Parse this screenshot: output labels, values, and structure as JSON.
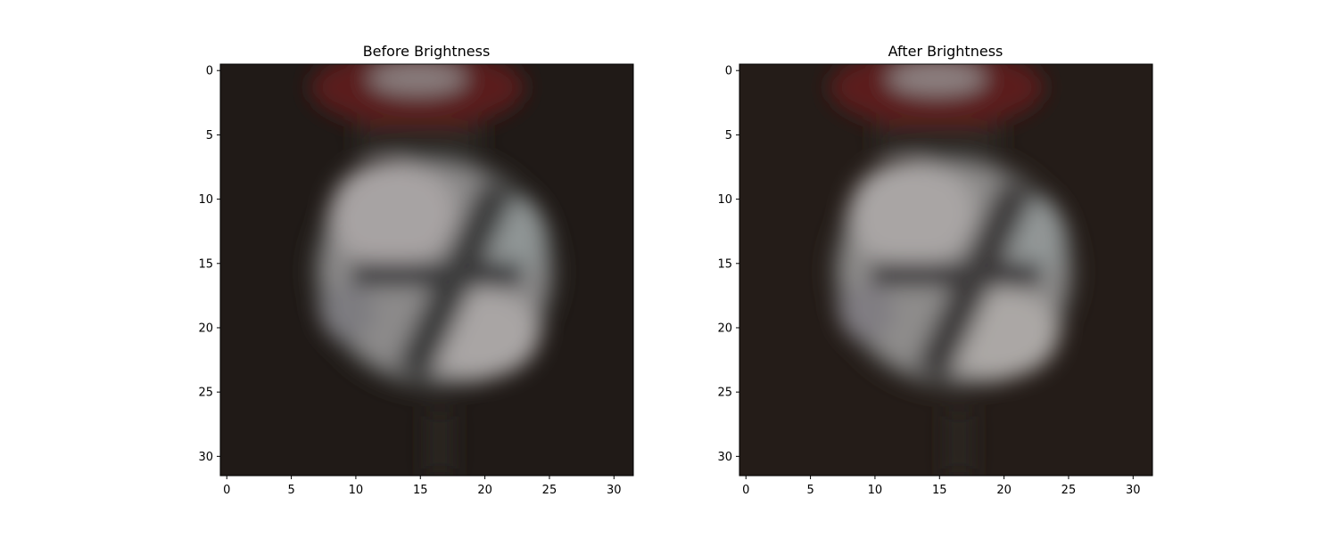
{
  "chart_data": [
    {
      "type": "image",
      "title": "Before Brightness",
      "xlim": [
        -0.5,
        31.5
      ],
      "ylim": [
        31.5,
        -0.5
      ],
      "x_ticks": [
        0,
        5,
        10,
        15,
        20,
        25,
        30
      ],
      "y_ticks": [
        0,
        5,
        10,
        15,
        20,
        25,
        30
      ],
      "x_tick_labels": [
        "0",
        "5",
        "10",
        "15",
        "20",
        "25",
        "30"
      ],
      "y_tick_labels": [
        "0",
        "5",
        "10",
        "15",
        "20",
        "25",
        "30"
      ],
      "image_size": [
        32,
        32
      ],
      "dominant_colors": {
        "background": "#201a17",
        "sign_white": "#9a9696",
        "sign_red": "#5a1e1c",
        "sign_dark": "#303030"
      }
    },
    {
      "type": "image",
      "title": "After Brightness",
      "xlim": [
        -0.5,
        31.5
      ],
      "ylim": [
        31.5,
        -0.5
      ],
      "x_ticks": [
        0,
        5,
        10,
        15,
        20,
        25,
        30
      ],
      "y_ticks": [
        0,
        5,
        10,
        15,
        20,
        25,
        30
      ],
      "x_tick_labels": [
        "0",
        "5",
        "10",
        "15",
        "20",
        "25",
        "30"
      ],
      "y_tick_labels": [
        "0",
        "5",
        "10",
        "15",
        "20",
        "25",
        "30"
      ],
      "image_size": [
        32,
        32
      ],
      "dominant_colors": {
        "background": "#241c18",
        "sign_white": "#9e9a98",
        "sign_red": "#5c1e1c",
        "sign_dark": "#343232"
      }
    }
  ]
}
